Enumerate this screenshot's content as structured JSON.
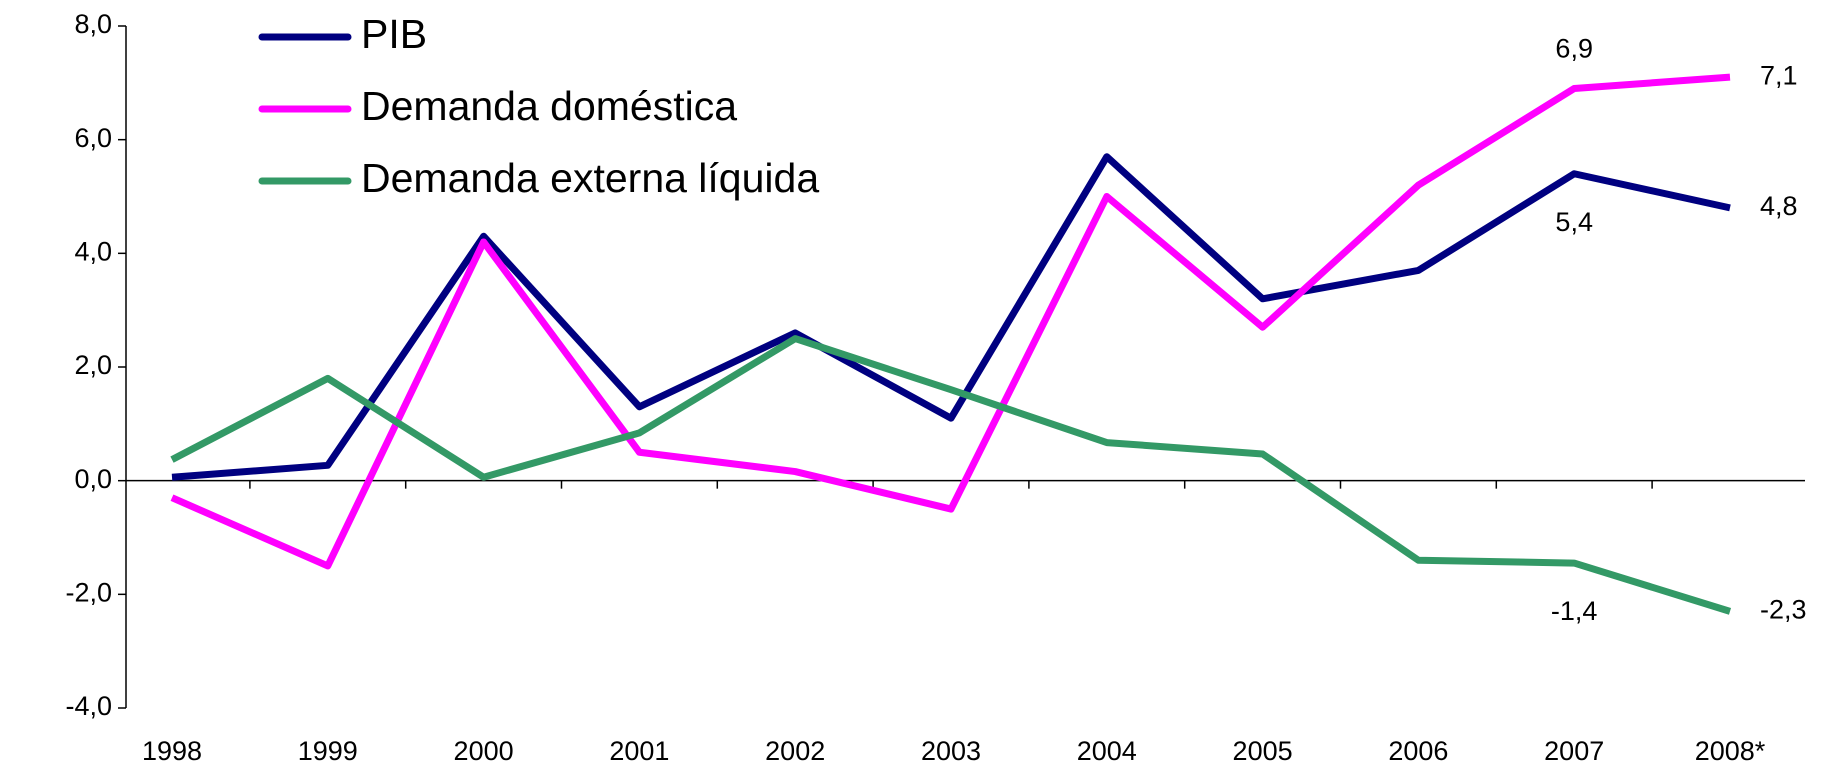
{
  "chart_data": {
    "type": "line",
    "categories": [
      "1998",
      "1999",
      "2000",
      "2001",
      "2002",
      "2003",
      "2004",
      "2005",
      "2006",
      "2007",
      "2008*"
    ],
    "series": [
      {
        "name": "PIB",
        "color": "#000080",
        "values": [
          0.06,
          0.27,
          4.3,
          1.3,
          2.6,
          1.1,
          5.7,
          3.2,
          3.7,
          5.4,
          4.8
        ],
        "value_labels": [
          null,
          null,
          null,
          null,
          null,
          null,
          null,
          null,
          null,
          "5,4",
          "4,8"
        ]
      },
      {
        "name": "Demanda doméstica",
        "color": "#ff00ff",
        "values": [
          -0.3,
          -1.5,
          4.2,
          0.5,
          0.16,
          -0.5,
          5.0,
          2.7,
          5.2,
          6.9,
          7.1
        ],
        "value_labels": [
          null,
          null,
          null,
          null,
          null,
          null,
          null,
          null,
          null,
          "6,9",
          "7,1"
        ]
      },
      {
        "name": "Demanda externa líquida",
        "color": "#339966",
        "values": [
          0.37,
          1.8,
          0.06,
          0.84,
          2.5,
          1.6,
          0.67,
          0.47,
          -1.4,
          -1.45,
          -2.3
        ],
        "value_labels": [
          null,
          null,
          null,
          null,
          null,
          null,
          null,
          null,
          null,
          "-1,4",
          "-2,3"
        ]
      }
    ],
    "ylim": [
      -4,
      8
    ],
    "yticks": [
      {
        "value": -4,
        "label": "-4,0"
      },
      {
        "value": -2,
        "label": "-2,0"
      },
      {
        "value": 0,
        "label": "0,0"
      },
      {
        "value": 2,
        "label": "2,0"
      },
      {
        "value": 4,
        "label": "4,0"
      },
      {
        "value": 6,
        "label": "6,0"
      },
      {
        "value": 8,
        "label": "8,0"
      }
    ],
    "legend": "upper left"
  }
}
